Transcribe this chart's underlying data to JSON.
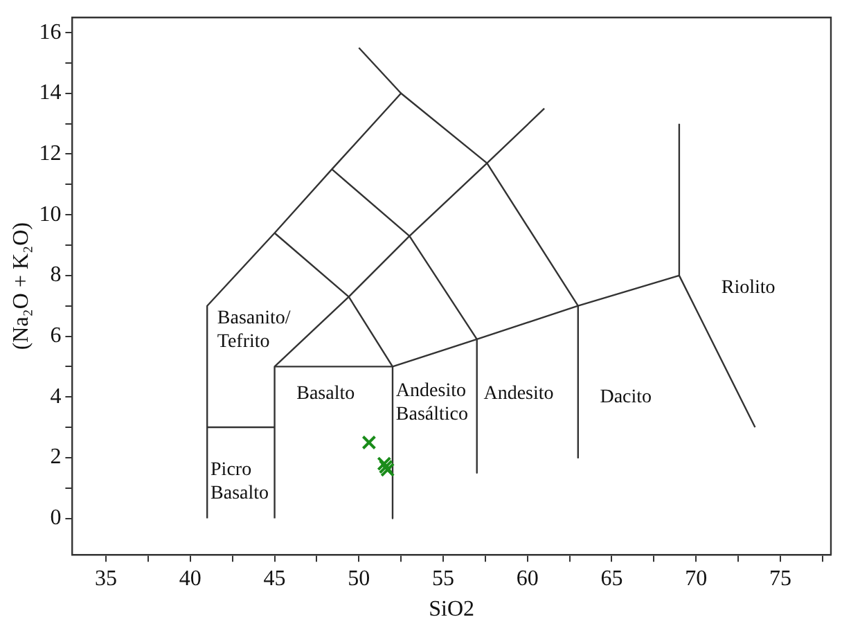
{
  "chart_data": {
    "type": "scatter",
    "xlabel": "SiO2",
    "ylabel": "(Na₂O + K₂O)",
    "xlim": [
      33,
      78
    ],
    "ylim": [
      -1.2,
      16.5
    ],
    "xticks": [
      35,
      {
        "value": 37.5,
        "label": null
      },
      40,
      {
        "value": 42.5,
        "label": null
      },
      45,
      {
        "value": 47.5,
        "label": null
      },
      50,
      {
        "value": 52.5,
        "label": null
      },
      55,
      {
        "value": 57.5,
        "label": null
      },
      60,
      {
        "value": 62.5,
        "label": null
      },
      65,
      {
        "value": 67.5,
        "label": null
      },
      70,
      {
        "value": 72.5,
        "label": null
      },
      75,
      {
        "value": 77.5,
        "label": null
      }
    ],
    "yticks": [
      0,
      {
        "value": 1,
        "label": null
      },
      2,
      {
        "value": 3,
        "label": null
      },
      4,
      {
        "value": 5,
        "label": null
      },
      6,
      {
        "value": 7,
        "label": null
      },
      8,
      {
        "value": 9,
        "label": null
      },
      10,
      {
        "value": 11,
        "label": null
      },
      12,
      {
        "value": 13,
        "label": null
      },
      14,
      {
        "value": 15,
        "label": null
      },
      16
    ],
    "grid": false,
    "legend": false,
    "line_style": "solid",
    "series": [
      {
        "marker": "cross",
        "color": "#1a8c1a",
        "x": [
          50.6,
          51.5,
          51.7,
          51.6
        ],
        "values": [
          2.5,
          1.8,
          1.6,
          1.7
        ]
      },
      {
        "type": "line",
        "color": "#333333",
        "x": [
          41,
          41,
          45,
          48.4,
          52.5,
          57.6,
          63,
          69,
          73.5
        ],
        "values": [
          0,
          7,
          9.4,
          11.5,
          14,
          11.7,
          7,
          8,
          3
        ]
      },
      {
        "type": "line",
        "color": "#333333",
        "x": [
          50,
          52.5
        ],
        "values": [
          15.5,
          14
        ]
      },
      {
        "type": "line",
        "color": "#333333",
        "x": [
          69,
          69
        ],
        "values": [
          8,
          13
        ]
      },
      {
        "type": "line",
        "color": "#333333",
        "x": [
          41,
          45
        ],
        "values": [
          3,
          3
        ]
      },
      {
        "type": "line",
        "color": "#333333",
        "x": [
          45,
          45,
          52,
          52
        ],
        "values": [
          0,
          5,
          5,
          0
        ]
      },
      {
        "type": "line",
        "color": "#333333",
        "x": [
          45,
          49.4,
          53,
          57.6,
          61
        ],
        "values": [
          5,
          7.3,
          9.3,
          11.7,
          13.5
        ]
      },
      {
        "type": "line",
        "color": "#333333",
        "x": [
          52,
          57,
          63
        ],
        "values": [
          5,
          5.9,
          7
        ]
      },
      {
        "type": "line",
        "color": "#333333",
        "x": [
          57,
          57
        ],
        "values": [
          5.9,
          1.5
        ]
      },
      {
        "type": "line",
        "color": "#333333",
        "x": [
          63,
          63
        ],
        "values": [
          7,
          2
        ]
      },
      {
        "type": "line",
        "color": "#333333",
        "x": [
          52,
          49.4,
          45
        ],
        "values": [
          5,
          7.3,
          9.4
        ]
      },
      {
        "type": "line",
        "color": "#333333",
        "x": [
          57,
          53,
          48.4
        ],
        "values": [
          5.9,
          9.3,
          11.5
        ]
      }
    ],
    "annotations": [
      "Basanito/\nTefrito",
      "Picro\nBasalto",
      "Basalto",
      "Andesito\nBasáltico",
      "Andesito",
      "Dacito",
      "Riolito"
    ]
  }
}
